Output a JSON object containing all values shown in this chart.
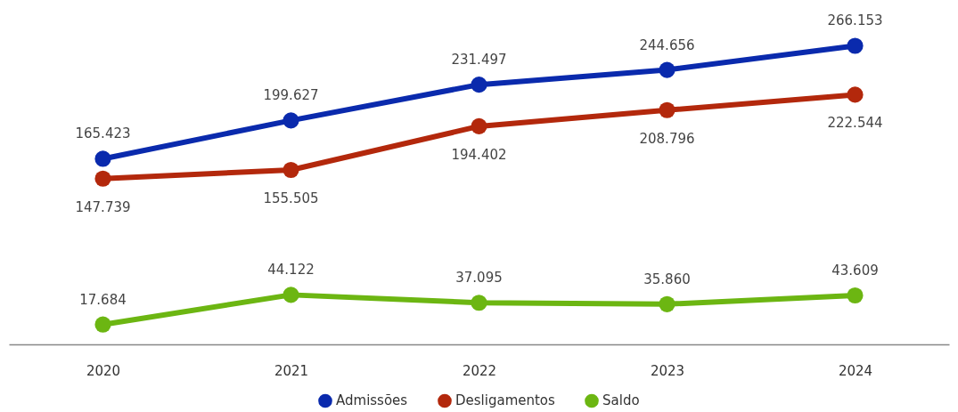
{
  "chart_data": {
    "type": "line",
    "categories": [
      "2020",
      "2021",
      "2022",
      "2023",
      "2024"
    ],
    "series": [
      {
        "name": "Admissões",
        "color": "#0a2aad",
        "values": [
          165423,
          199627,
          231497,
          244656,
          266153
        ],
        "value_labels": [
          "165.423",
          "199.627",
          "231.497",
          "244.656",
          "266.153"
        ]
      },
      {
        "name": "Desligamentos",
        "color": "#b3280c",
        "values": [
          147739,
          155505,
          194402,
          208796,
          222544
        ],
        "value_labels": [
          "147.739",
          "155.505",
          "194.402",
          "208.796",
          "222.544"
        ]
      },
      {
        "name": "Saldo",
        "color": "#6cb612",
        "values": [
          17684,
          44122,
          37095,
          35860,
          43609
        ],
        "value_labels": [
          "17.684",
          "44.122",
          "37.095",
          "35.860",
          "43.609"
        ]
      }
    ],
    "tick_labels": "x",
    "marker": "circle",
    "legend": "bottom"
  }
}
